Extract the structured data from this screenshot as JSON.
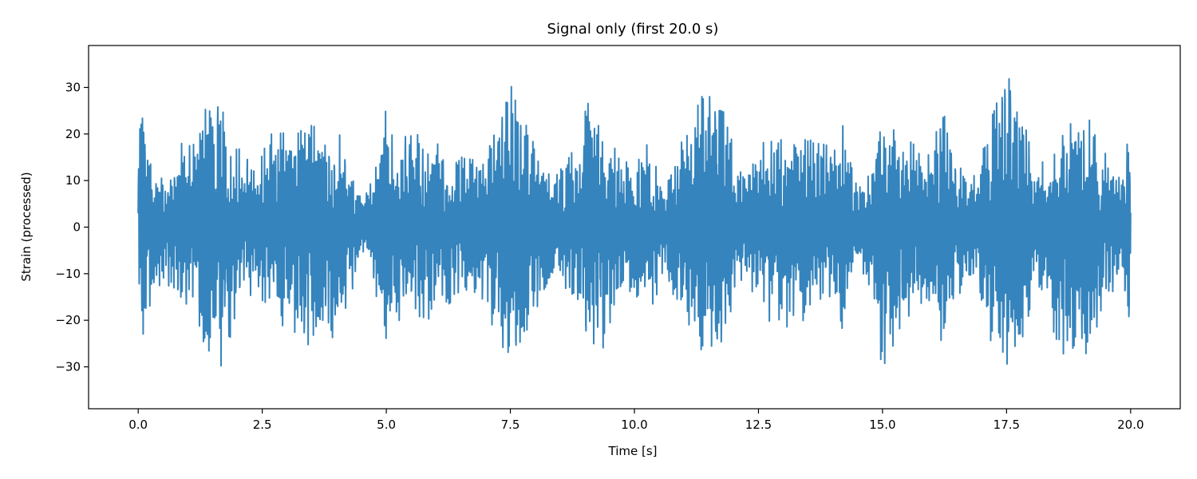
{
  "chart_data": {
    "type": "line",
    "title": "Signal only (first 20.0 s)",
    "xlabel": "Time [s]",
    "ylabel": "Strain (processed)",
    "xlim": [
      -1.0,
      21.0
    ],
    "ylim": [
      -39.0,
      39.0
    ],
    "xticks": [
      0.0,
      2.5,
      5.0,
      7.5,
      10.0,
      12.5,
      15.0,
      17.5,
      20.0
    ],
    "xtick_labels": [
      "0.0",
      "2.5",
      "5.0",
      "7.5",
      "10.0",
      "12.5",
      "15.0",
      "17.5",
      "20.0"
    ],
    "yticks": [
      -30,
      -20,
      -10,
      0,
      10,
      20,
      30
    ],
    "ytick_labels": [
      "−30",
      "−20",
      "−10",
      "0",
      "10",
      "20",
      "30"
    ],
    "grid": false,
    "legend": "none",
    "series": [
      {
        "color": "#3584bd",
        "x_range": [
          0.0,
          20.0
        ],
        "envelope": {
          "times": [
            0.0,
            0.1,
            0.3,
            0.5,
            0.7,
            0.9,
            1.1,
            1.3,
            1.55,
            1.8,
            2.1,
            2.4,
            2.7,
            3.0,
            3.3,
            3.6,
            3.9,
            4.2,
            4.5,
            4.7,
            4.95,
            5.2,
            5.5,
            5.8,
            6.1,
            6.4,
            6.7,
            7.0,
            7.3,
            7.5,
            7.75,
            8.0,
            8.3,
            8.6,
            8.9,
            9.1,
            9.4,
            9.7,
            10.0,
            10.3,
            10.6,
            10.9,
            11.2,
            11.5,
            11.8,
            12.1,
            12.4,
            12.7,
            13.0,
            13.3,
            13.6,
            13.9,
            14.2,
            14.5,
            14.8,
            15.0,
            15.3,
            15.6,
            15.9,
            16.2,
            16.5,
            16.8,
            17.1,
            17.3,
            17.55,
            17.8,
            18.1,
            18.4,
            18.7,
            19.0,
            19.2,
            19.5,
            19.8,
            20.0
          ],
          "upper": [
            24,
            29,
            15,
            10,
            12,
            22,
            18,
            26,
            34,
            22,
            16,
            15,
            24,
            20,
            24,
            25,
            22,
            20,
            6,
            10,
            30,
            19,
            22,
            21,
            18,
            16,
            15,
            17,
            28,
            35,
            26,
            18,
            12,
            14,
            20,
            32,
            20,
            17,
            15,
            19,
            8,
            18,
            24,
            33,
            27,
            12,
            16,
            21,
            20,
            21,
            19,
            18,
            24,
            8,
            15,
            29,
            22,
            20,
            18,
            26,
            15,
            10,
            20,
            32,
            34,
            26,
            14,
            18,
            24,
            31,
            24,
            16,
            12,
            26
          ],
          "lower": [
            -27,
            -26,
            -15,
            -12,
            -14,
            -18,
            -20,
            -26,
            -33,
            -28,
            -16,
            -14,
            -20,
            -22,
            -26,
            -26,
            -24,
            -20,
            -5,
            -8,
            -31,
            -22,
            -20,
            -21,
            -18,
            -16,
            -15,
            -17,
            -30,
            -33,
            -24,
            -20,
            -12,
            -14,
            -18,
            -30,
            -26,
            -17,
            -16,
            -20,
            -9,
            -20,
            -27,
            -31,
            -28,
            -12,
            -16,
            -22,
            -22,
            -23,
            -20,
            -18,
            -22,
            -8,
            -16,
            -33,
            -24,
            -20,
            -18,
            -27,
            -18,
            -10,
            -22,
            -29,
            -34,
            -30,
            -14,
            -22,
            -30,
            -34,
            -27,
            -16,
            -12,
            -30
          ]
        }
      }
    ]
  }
}
